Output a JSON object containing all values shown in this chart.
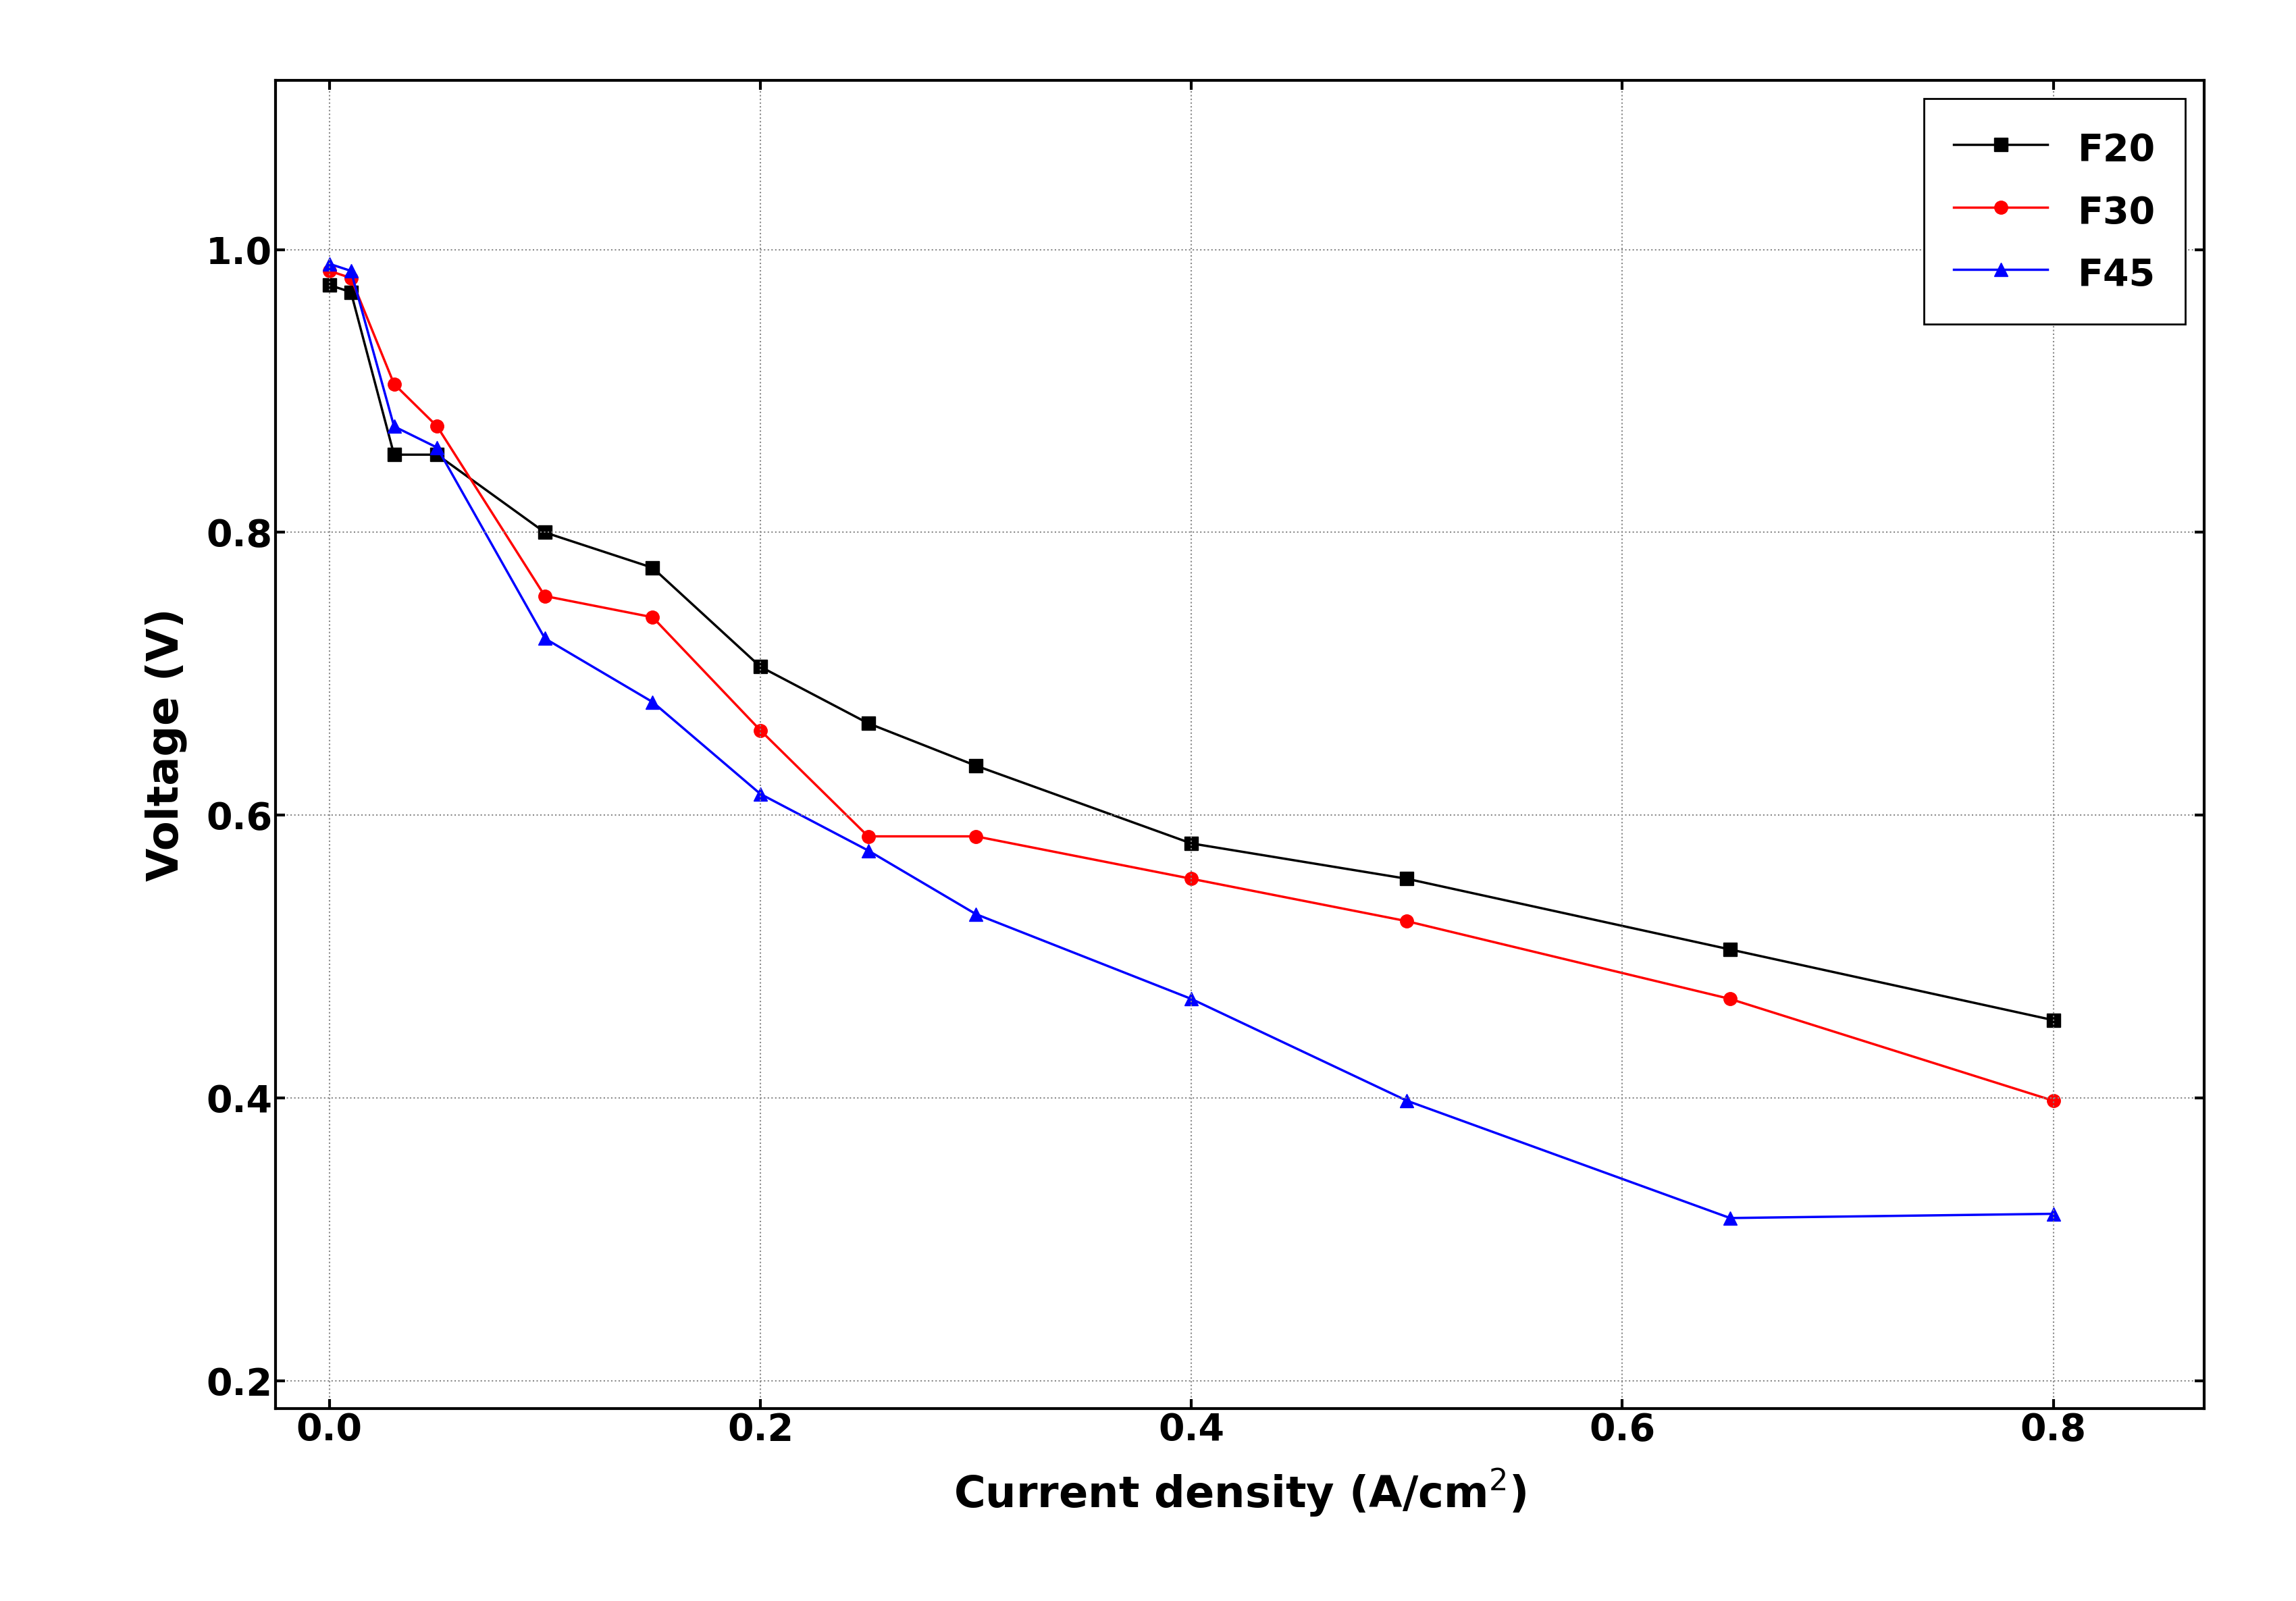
{
  "F20_x": [
    0.0,
    0.01,
    0.03,
    0.05,
    0.1,
    0.15,
    0.2,
    0.25,
    0.3,
    0.4,
    0.5,
    0.65,
    0.8
  ],
  "F20_y": [
    0.975,
    0.97,
    0.855,
    0.855,
    0.8,
    0.775,
    0.705,
    0.665,
    0.635,
    0.58,
    0.555,
    0.505,
    0.455
  ],
  "F30_x": [
    0.0,
    0.01,
    0.03,
    0.05,
    0.1,
    0.15,
    0.2,
    0.25,
    0.3,
    0.4,
    0.5,
    0.65,
    0.8
  ],
  "F30_y": [
    0.985,
    0.98,
    0.905,
    0.875,
    0.755,
    0.74,
    0.66,
    0.585,
    0.585,
    0.555,
    0.525,
    0.47,
    0.398
  ],
  "F45_x": [
    0.0,
    0.01,
    0.03,
    0.05,
    0.1,
    0.15,
    0.2,
    0.25,
    0.3,
    0.4,
    0.5,
    0.65,
    0.8
  ],
  "F45_y": [
    0.99,
    0.985,
    0.875,
    0.86,
    0.725,
    0.68,
    0.615,
    0.575,
    0.53,
    0.47,
    0.398,
    0.315,
    0.318
  ],
  "xlabel": "Current density (A/cm$^2$)",
  "ylabel": "Voltage (V)",
  "xlim": [
    -0.025,
    0.87
  ],
  "ylim": [
    0.18,
    1.12
  ],
  "yticks": [
    0.2,
    0.4,
    0.6,
    0.8,
    1.0
  ],
  "xticks": [
    0.0,
    0.2,
    0.4,
    0.6,
    0.8
  ],
  "legend_labels": [
    "F20",
    "F30",
    "F45"
  ],
  "F20_color": "#000000",
  "F30_color": "#ff0000",
  "F45_color": "#0000ff",
  "F20_marker": "s",
  "F30_marker": "o",
  "F45_marker": "^",
  "linewidth": 2.5,
  "markersize": 14,
  "grid_color": "#888888",
  "background_color": "#ffffff",
  "font_size_label": 46,
  "font_size_tick": 40,
  "font_size_legend": 40
}
